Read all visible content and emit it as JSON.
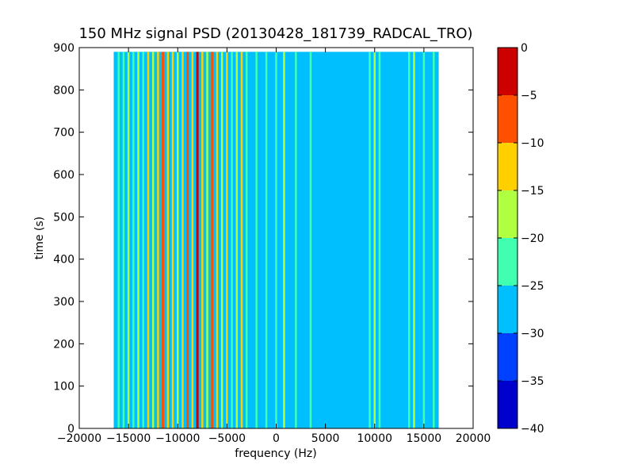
{
  "chart_data": {
    "type": "heatmap",
    "title": "150 MHz signal PSD (20130428_181739_RADCAL_TRO)",
    "xlabel": "frequency (Hz)",
    "ylabel": "time (s)",
    "xlim": [
      -20000,
      20000
    ],
    "ylim": [
      0,
      900
    ],
    "x_ticks": [
      "−20000",
      "−15000",
      "−10000",
      "−5000",
      "0",
      "5000",
      "10000",
      "15000",
      "20000"
    ],
    "x_tick_values": [
      -20000,
      -15000,
      -10000,
      -5000,
      0,
      5000,
      10000,
      15000,
      20000
    ],
    "y_ticks": [
      "0",
      "100",
      "200",
      "300",
      "400",
      "500",
      "600",
      "700",
      "800",
      "900"
    ],
    "y_tick_values": [
      0,
      100,
      200,
      300,
      400,
      500,
      600,
      700,
      800,
      900
    ],
    "data_extent": {
      "x": [
        -16500,
        16500
      ],
      "y": [
        0,
        890
      ]
    },
    "colorbar": {
      "levels": [
        -40,
        -35,
        -30,
        -25,
        -20,
        -15,
        -10,
        -5,
        0
      ],
      "tick_labels": [
        "−40",
        "−35",
        "−30",
        "−25",
        "−20",
        "−15",
        "−10",
        "−5",
        "0"
      ],
      "colors": [
        "#0000cd",
        "#0040ff",
        "#00bfff",
        "#40ffb0",
        "#b0ff40",
        "#ffd000",
        "#ff5000",
        "#cd0000"
      ]
    },
    "background_level": -27.5,
    "stripes": [
      {
        "x": -16000,
        "level": -22.5
      },
      {
        "x": -15500,
        "level": -22.5
      },
      {
        "x": -15000,
        "level": -17.5
      },
      {
        "x": -14500,
        "level": -22.5
      },
      {
        "x": -14000,
        "level": -17.5
      },
      {
        "x": -13500,
        "level": -22.5
      },
      {
        "x": -13000,
        "level": -12.5
      },
      {
        "x": -12500,
        "level": -17.5
      },
      {
        "x": -12000,
        "level": -12.5
      },
      {
        "x": -11500,
        "level": -7.5
      },
      {
        "x": -11000,
        "level": -12.5
      },
      {
        "x": -10500,
        "level": -12.5
      },
      {
        "x": -10000,
        "level": -17.5
      },
      {
        "x": -9500,
        "level": -12.5
      },
      {
        "x": -9000,
        "level": -7.5
      },
      {
        "x": -8500,
        "level": -12.5
      },
      {
        "x": -8000,
        "level": -2.5
      },
      {
        "x": -7500,
        "level": -12.5
      },
      {
        "x": -7000,
        "level": -17.5
      },
      {
        "x": -6500,
        "level": -7.5
      },
      {
        "x": -6000,
        "level": -12.5
      },
      {
        "x": -5500,
        "level": -17.5
      },
      {
        "x": -5000,
        "level": -12.5
      },
      {
        "x": -4500,
        "level": -22.5
      },
      {
        "x": -4000,
        "level": -17.5
      },
      {
        "x": -3500,
        "level": -12.5
      },
      {
        "x": -3000,
        "level": -22.5
      },
      {
        "x": -2000,
        "level": -22.5
      },
      {
        "x": -1000,
        "level": -22.5
      },
      {
        "x": 0,
        "level": -22.5
      },
      {
        "x": 800,
        "level": -17.5
      },
      {
        "x": 2000,
        "level": -22.5
      },
      {
        "x": 3500,
        "level": -22.5
      },
      {
        "x": 9500,
        "level": -22.5
      },
      {
        "x": 10000,
        "level": -17.5
      },
      {
        "x": 10500,
        "level": -22.5
      },
      {
        "x": 13500,
        "level": -22.5
      },
      {
        "x": 14000,
        "level": -17.5
      },
      {
        "x": 15000,
        "level": -22.5
      },
      {
        "x": 16000,
        "level": -22.5
      }
    ]
  }
}
